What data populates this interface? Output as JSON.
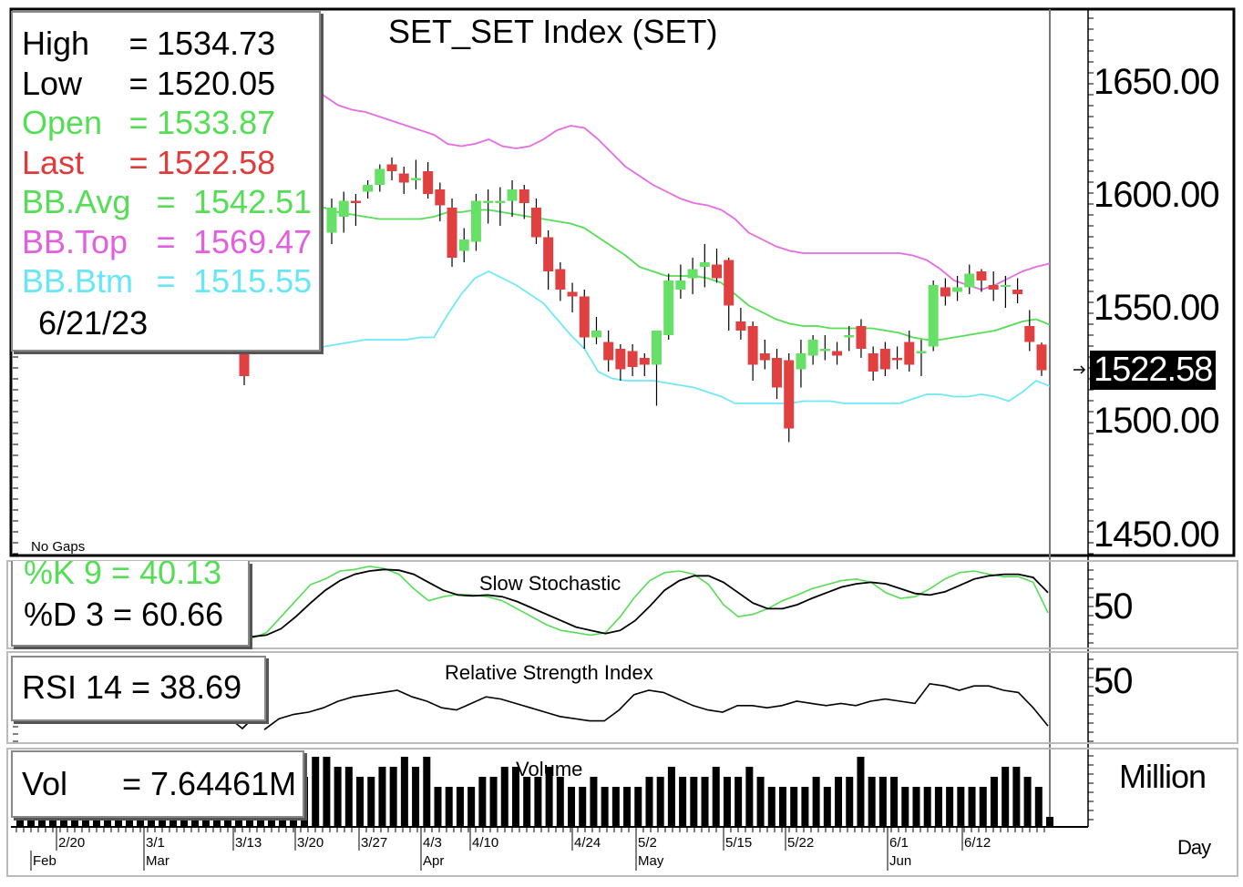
{
  "chart_data": {
    "type": "candlestick",
    "title": "SET_SET  Index  (SET)",
    "date": "6/21/23",
    "info": [
      {
        "label": "High",
        "value": "1534.73",
        "color": "#000000"
      },
      {
        "label": "Low",
        "value": "1520.05",
        "color": "#000000"
      },
      {
        "label": "Open",
        "value": "1533.87",
        "color": "#55dd55"
      },
      {
        "label": "Last",
        "value": "1522.58",
        "color": "#e03a3a"
      },
      {
        "label": "BB.Avg",
        "value": "1542.51",
        "color": "#55dd55"
      },
      {
        "label": "BB.Top",
        "value": "1569.47",
        "color": "#e060e0"
      },
      {
        "label": "BB.Btm",
        "value": "1515.55",
        "color": "#66e6f6"
      }
    ],
    "price_axis": {
      "ticks": [
        "1650.00",
        "1600.00",
        "1550.00",
        "1500.00",
        "1450.00"
      ],
      "ylim": [
        1440,
        1660
      ]
    },
    "last_label": "1522.58",
    "no_gaps": "No  Gaps",
    "candles": [
      [
        1533,
        1520,
        1536,
        1516
      ],
      [
        1583,
        1594,
        1598,
        1578
      ],
      [
        1590,
        1597,
        1601,
        1583
      ],
      [
        1597,
        1596,
        1600,
        1586
      ],
      [
        1601,
        1604,
        1606,
        1598
      ],
      [
        1604,
        1611,
        1613,
        1601
      ],
      [
        1613,
        1610,
        1616,
        1606
      ],
      [
        1609,
        1605,
        1612,
        1600
      ],
      [
        1606,
        1607,
        1615,
        1602
      ],
      [
        1610,
        1600,
        1614,
        1598
      ],
      [
        1602,
        1595,
        1605,
        1588
      ],
      [
        1594,
        1572,
        1598,
        1568
      ],
      [
        1575,
        1580,
        1585,
        1570
      ],
      [
        1579,
        1597,
        1600,
        1575
      ],
      [
        1596,
        1597,
        1602,
        1587
      ],
      [
        1596,
        1597,
        1603,
        1586
      ],
      [
        1597,
        1602,
        1606,
        1590
      ],
      [
        1602,
        1596,
        1604,
        1589
      ],
      [
        1594,
        1581,
        1598,
        1578
      ],
      [
        1581,
        1566,
        1584,
        1558
      ],
      [
        1567,
        1558,
        1570,
        1553
      ],
      [
        1557,
        1555,
        1561,
        1548
      ],
      [
        1555,
        1537,
        1558,
        1532
      ],
      [
        1537,
        1540,
        1546,
        1534
      ],
      [
        1535,
        1527,
        1540,
        1522
      ],
      [
        1532,
        1523,
        1534,
        1518
      ],
      [
        1531,
        1524,
        1534,
        1520
      ],
      [
        1528,
        1525,
        1530,
        1520
      ],
      [
        1525,
        1540,
        1538,
        1507
      ],
      [
        1538,
        1562,
        1565,
        1536
      ],
      [
        1558,
        1562,
        1569,
        1554
      ],
      [
        1563,
        1567,
        1572,
        1556
      ],
      [
        1568,
        1570,
        1578,
        1559
      ],
      [
        1569,
        1563,
        1576,
        1561
      ],
      [
        1571,
        1551,
        1572,
        1540
      ],
      [
        1544,
        1540,
        1550,
        1536
      ],
      [
        1542,
        1525,
        1544,
        1518
      ],
      [
        1530,
        1527,
        1536,
        1523
      ],
      [
        1528,
        1515,
        1532,
        1510
      ],
      [
        1527,
        1497,
        1530,
        1491
      ],
      [
        1523,
        1530,
        1536,
        1515
      ],
      [
        1529,
        1536,
        1538,
        1525
      ],
      [
        1531,
        1532,
        1538,
        1527
      ],
      [
        1531,
        1529,
        1535,
        1525
      ],
      [
        1537,
        1538,
        1542,
        1531
      ],
      [
        1542,
        1532,
        1545,
        1528
      ],
      [
        1530,
        1522,
        1533,
        1518
      ],
      [
        1532,
        1523,
        1535,
        1520
      ],
      [
        1528,
        1527,
        1533,
        1523
      ],
      [
        1535,
        1525,
        1540,
        1522
      ],
      [
        1530,
        1531,
        1536,
        1520
      ],
      [
        1533,
        1560,
        1562,
        1531
      ],
      [
        1559,
        1555,
        1563,
        1551
      ],
      [
        1557,
        1559,
        1564,
        1553
      ],
      [
        1559,
        1565,
        1569,
        1556
      ],
      [
        1566,
        1562,
        1567,
        1557
      ],
      [
        1560,
        1558,
        1566,
        1553
      ],
      [
        1560,
        1560,
        1564,
        1550
      ],
      [
        1558,
        1556,
        1563,
        1552
      ],
      [
        1542,
        1535,
        1549,
        1531
      ],
      [
        1533.87,
        1522.58,
        1534.73,
        1520.05
      ]
    ],
    "bb_top": [
      [
        1,
        1663
      ],
      [
        2,
        1650
      ],
      [
        3,
        1643
      ],
      [
        4,
        1639
      ],
      [
        5,
        1637
      ],
      [
        6,
        1636
      ],
      [
        7,
        1634
      ],
      [
        8,
        1632
      ],
      [
        9,
        1630
      ],
      [
        10,
        1628
      ],
      [
        11,
        1626
      ],
      [
        12,
        1622
      ],
      [
        13,
        1621
      ],
      [
        14,
        1622
      ],
      [
        15,
        1624
      ],
      [
        16,
        1621
      ],
      [
        17,
        1620
      ],
      [
        18,
        1621
      ],
      [
        19,
        1624
      ],
      [
        20,
        1628
      ],
      [
        21,
        1630
      ],
      [
        22,
        1629
      ],
      [
        23,
        1624
      ],
      [
        24,
        1618
      ],
      [
        25,
        1612
      ],
      [
        26,
        1608
      ],
      [
        27,
        1604
      ],
      [
        28,
        1601
      ],
      [
        29,
        1598
      ],
      [
        30,
        1596
      ],
      [
        31,
        1595
      ],
      [
        32,
        1593
      ],
      [
        33,
        1589
      ],
      [
        34,
        1583
      ],
      [
        35,
        1580
      ],
      [
        36,
        1577
      ],
      [
        37,
        1575
      ],
      [
        38,
        1574
      ],
      [
        39,
        1574
      ],
      [
        40,
        1574
      ],
      [
        41,
        1574
      ],
      [
        42,
        1574
      ],
      [
        43,
        1574
      ],
      [
        44,
        1574
      ],
      [
        45,
        1574
      ],
      [
        46,
        1573
      ],
      [
        47,
        1571
      ],
      [
        48,
        1567
      ],
      [
        49,
        1562
      ],
      [
        50,
        1560
      ],
      [
        51,
        1558
      ],
      [
        52,
        1560
      ],
      [
        53,
        1563
      ],
      [
        54,
        1566
      ],
      [
        55,
        1568
      ],
      [
        56,
        1569.47
      ]
    ],
    "bb_avg": [
      [
        1,
        1590
      ],
      [
        2,
        1594
      ],
      [
        3,
        1594
      ],
      [
        4,
        1592
      ],
      [
        5,
        1591
      ],
      [
        6,
        1590
      ],
      [
        7,
        1589
      ],
      [
        8,
        1589
      ],
      [
        9,
        1589
      ],
      [
        10,
        1589
      ],
      [
        11,
        1590
      ],
      [
        12,
        1592
      ],
      [
        13,
        1592
      ],
      [
        14,
        1593
      ],
      [
        15,
        1593
      ],
      [
        16,
        1592
      ],
      [
        17,
        1591
      ],
      [
        18,
        1590
      ],
      [
        19,
        1589
      ],
      [
        20,
        1588
      ],
      [
        21,
        1587
      ],
      [
        22,
        1585
      ],
      [
        23,
        1581
      ],
      [
        24,
        1577
      ],
      [
        25,
        1573
      ],
      [
        26,
        1568
      ],
      [
        27,
        1566
      ],
      [
        28,
        1564
      ],
      [
        29,
        1564
      ],
      [
        30,
        1564
      ],
      [
        31,
        1563
      ],
      [
        32,
        1561
      ],
      [
        33,
        1556
      ],
      [
        34,
        1551
      ],
      [
        35,
        1548
      ],
      [
        36,
        1545
      ],
      [
        37,
        1543
      ],
      [
        38,
        1542
      ],
      [
        39,
        1542
      ],
      [
        40,
        1541
      ],
      [
        41,
        1541
      ],
      [
        42,
        1541
      ],
      [
        43,
        1541
      ],
      [
        44,
        1540
      ],
      [
        45,
        1539
      ],
      [
        46,
        1537
      ],
      [
        47,
        1536
      ],
      [
        48,
        1536
      ],
      [
        49,
        1537
      ],
      [
        50,
        1538
      ],
      [
        51,
        1539
      ],
      [
        52,
        1540
      ],
      [
        53,
        1542
      ],
      [
        54,
        1544
      ],
      [
        55,
        1545
      ],
      [
        56,
        1542.51
      ]
    ],
    "bb_btm": [
      [
        1,
        1532
      ],
      [
        2,
        1530
      ],
      [
        3,
        1533
      ],
      [
        4,
        1534
      ],
      [
        5,
        1535
      ],
      [
        6,
        1536
      ],
      [
        7,
        1536
      ],
      [
        8,
        1536
      ],
      [
        9,
        1536
      ],
      [
        10,
        1537
      ],
      [
        11,
        1537
      ],
      [
        12,
        1547
      ],
      [
        13,
        1556
      ],
      [
        14,
        1563
      ],
      [
        15,
        1566
      ],
      [
        16,
        1563
      ],
      [
        17,
        1560
      ],
      [
        18,
        1556
      ],
      [
        19,
        1552
      ],
      [
        20,
        1545
      ],
      [
        21,
        1538
      ],
      [
        22,
        1532
      ],
      [
        23,
        1522
      ],
      [
        24,
        1519
      ],
      [
        25,
        1518
      ],
      [
        26,
        1518
      ],
      [
        27,
        1518
      ],
      [
        28,
        1517
      ],
      [
        29,
        1516
      ],
      [
        30,
        1515
      ],
      [
        31,
        1513
      ],
      [
        32,
        1511
      ],
      [
        33,
        1508
      ],
      [
        34,
        1508
      ],
      [
        35,
        1508
      ],
      [
        36,
        1508
      ],
      [
        37,
        1508
      ],
      [
        38,
        1509
      ],
      [
        39,
        1509
      ],
      [
        40,
        1509
      ],
      [
        41,
        1508
      ],
      [
        42,
        1508
      ],
      [
        43,
        1508
      ],
      [
        44,
        1508
      ],
      [
        45,
        1508
      ],
      [
        46,
        1510
      ],
      [
        47,
        1512
      ],
      [
        48,
        1512
      ],
      [
        49,
        1511
      ],
      [
        50,
        1511
      ],
      [
        51,
        1512
      ],
      [
        52,
        1511
      ],
      [
        53,
        1509
      ],
      [
        54,
        1513
      ],
      [
        55,
        1518
      ],
      [
        56,
        1515.55
      ]
    ],
    "stochastic": {
      "title": "Slow  Stochastic",
      "k_label": "%K  9  =  40.13",
      "d_label": "%D  3  =  60.66",
      "axis_tick": "50",
      "ylim": [
        0,
        100
      ],
      "k": [
        8,
        15,
        35,
        55,
        75,
        82,
        92,
        94,
        98,
        95,
        88,
        70,
        55,
        60,
        63,
        62,
        60,
        55,
        45,
        35,
        25,
        18,
        15,
        12,
        15,
        35,
        60,
        80,
        90,
        92,
        88,
        75,
        50,
        35,
        38,
        45,
        55,
        62,
        70,
        75,
        80,
        82,
        78,
        65,
        58,
        60,
        70,
        82,
        90,
        92,
        88,
        85,
        85,
        78,
        40
      ],
      "d": [
        10,
        12,
        20,
        35,
        52,
        68,
        80,
        88,
        92,
        94,
        93,
        88,
        78,
        68,
        62,
        61,
        62,
        60,
        54,
        46,
        38,
        30,
        22,
        18,
        14,
        18,
        30,
        48,
        68,
        80,
        86,
        86,
        78,
        65,
        52,
        45,
        45,
        50,
        58,
        65,
        72,
        76,
        78,
        76,
        70,
        64,
        62,
        66,
        74,
        82,
        86,
        88,
        88,
        84,
        65
      ]
    },
    "rsi": {
      "title": "Relative  Strength  Index",
      "label": "RSI  14  =  38.69",
      "axis_tick": "50",
      "ylim": [
        30,
        70
      ],
      "values": [
        37,
        42,
        44,
        45,
        47,
        50,
        52,
        53,
        54,
        55,
        52,
        50,
        47,
        46,
        49,
        52,
        51,
        49,
        47,
        45,
        43,
        42,
        41,
        41,
        46,
        53,
        55,
        54,
        51,
        48,
        46,
        45,
        48,
        48,
        47,
        48,
        50,
        49,
        48,
        49,
        48,
        50,
        51,
        50,
        49,
        58,
        57,
        55,
        57,
        57,
        55,
        54,
        47,
        38.69
      ]
    },
    "volume": {
      "title": "Volume",
      "label": "Vol",
      "value": "=  7.64461M",
      "unit": "Million",
      "values": [
        5,
        7,
        7,
        6,
        6,
        5,
        5,
        6,
        6,
        7,
        6,
        7,
        4,
        4,
        4,
        4,
        5,
        5,
        6,
        6,
        5,
        5,
        6,
        5,
        4,
        4,
        5,
        4,
        4,
        4,
        4,
        5,
        5,
        6,
        5,
        5,
        5,
        6,
        5,
        5,
        6,
        5,
        4,
        4,
        4,
        4,
        5,
        4,
        5,
        5,
        7,
        5,
        5,
        5,
        4,
        4,
        4,
        4,
        4,
        4,
        4,
        4,
        5,
        6,
        6,
        5,
        4,
        1
      ]
    },
    "x_axis": {
      "period": "Day",
      "dates": [
        "2/20",
        "3/1",
        "3/13",
        "3/20",
        "3/27",
        "4/3",
        "4/10",
        "4/24",
        "5/2",
        "5/15",
        "5/22",
        "6/1",
        "6/12"
      ],
      "months": [
        "Feb",
        "Mar",
        "Apr",
        "May",
        "Jun"
      ]
    },
    "colors": {
      "up": "#66e066",
      "down": "#e04040",
      "bb_top": "#e46ce4",
      "bb_avg": "#55dd55",
      "bb_btm": "#70e8f8",
      "k_line": "#55dd55",
      "d_line": "#000000"
    }
  }
}
